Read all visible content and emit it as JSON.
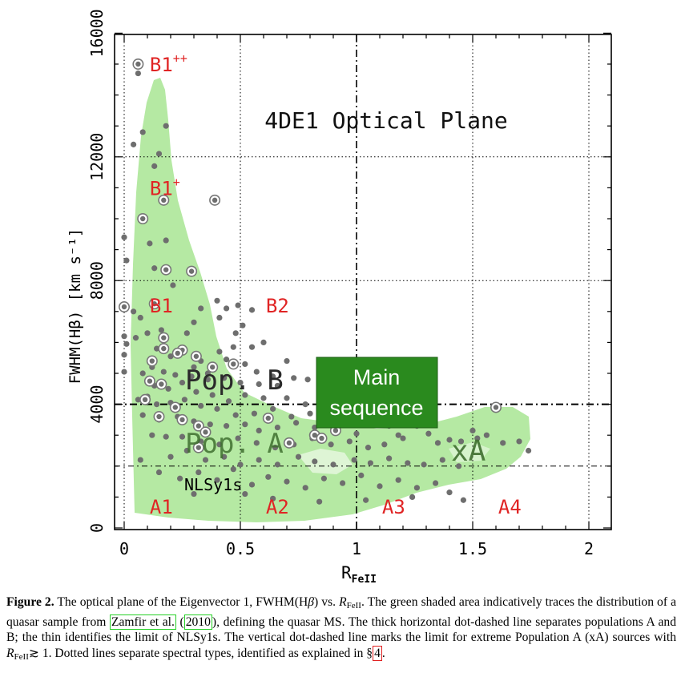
{
  "chart_data": {
    "type": "scatter",
    "title": "4DE1 Optical Plane",
    "xlabel": "R",
    "xlabel_sub": "FeII",
    "ylabel": "FWHM(Hβ) [km s⁻¹]",
    "xlim": [
      -0.05,
      2.1
    ],
    "ylim": [
      -200,
      16000
    ],
    "x_ticks": [
      "0",
      "0.5",
      "1",
      "1.5",
      "2"
    ],
    "x_tick_values": [
      0,
      0.5,
      1,
      1.5,
      2
    ],
    "y_ticks": [
      "0",
      "4000",
      "8000",
      "12000",
      "16000"
    ],
    "y_tick_values": [
      0,
      4000,
      8000,
      12000,
      16000
    ],
    "grid": "dotted spectral-type boundaries",
    "vertical_boundaries": [
      0.5,
      1.0,
      1.5
    ],
    "horizontal_boundaries": [
      4000,
      8000,
      12000
    ],
    "pop_boundary_fwhm": 4000,
    "nlsy1_limit_fwhm": 2000,
    "xa_limit_rfe": 1.0,
    "colors": {
      "ms_area": "#b5e9a3",
      "points": "#6e6e6e",
      "labels": "#e02424",
      "ms_box": "#2a8a1e"
    },
    "region_labels": [
      {
        "text": "B1",
        "sup": "++",
        "x": 0.11,
        "y": 15000
      },
      {
        "text": "B1",
        "sup": "+",
        "x": 0.11,
        "y": 11000
      },
      {
        "text": "B1",
        "x": 0.11,
        "y": 7200
      },
      {
        "text": "B2",
        "x": 0.61,
        "y": 7200
      },
      {
        "text": "A1",
        "x": 0.11,
        "y": 700
      },
      {
        "text": "A2",
        "x": 0.61,
        "y": 700
      },
      {
        "text": "A3",
        "x": 1.11,
        "y": 700
      },
      {
        "text": "A4",
        "x": 1.61,
        "y": 700
      }
    ],
    "annotations": {
      "pop_b": "Pop. B",
      "pop_a": "Pop. A",
      "nlsy1": "NLSy1s",
      "xa": "xA",
      "main_sequence": [
        "Main",
        "sequence"
      ]
    },
    "series_filled": [
      [
        0.0,
        9400
      ],
      [
        0.01,
        8650
      ],
      [
        0.0,
        6200
      ],
      [
        0.01,
        5950
      ],
      [
        0.0,
        5600
      ],
      [
        0.0,
        5050
      ],
      [
        0.04,
        12400
      ],
      [
        0.06,
        14700
      ],
      [
        0.08,
        12800
      ],
      [
        0.13,
        11700
      ],
      [
        0.15,
        12100
      ],
      [
        0.18,
        13000
      ],
      [
        0.11,
        9200
      ],
      [
        0.18,
        9300
      ],
      [
        0.13,
        8400
      ],
      [
        0.21,
        7850
      ],
      [
        0.04,
        7000
      ],
      [
        0.07,
        6800
      ],
      [
        0.1,
        6300
      ],
      [
        0.05,
        6150
      ],
      [
        0.16,
        6400
      ],
      [
        0.14,
        5800
      ],
      [
        0.2,
        5550
      ],
      [
        0.25,
        5700
      ],
      [
        0.27,
        6300
      ],
      [
        0.3,
        6650
      ],
      [
        0.33,
        7100
      ],
      [
        0.4,
        7350
      ],
      [
        0.44,
        7100
      ],
      [
        0.49,
        7200
      ],
      [
        0.55,
        7050
      ],
      [
        0.41,
        6800
      ],
      [
        0.48,
        6300
      ],
      [
        0.51,
        6550
      ],
      [
        0.6,
        6000
      ],
      [
        0.55,
        5850
      ],
      [
        0.47,
        5850
      ],
      [
        0.41,
        5700
      ],
      [
        0.33,
        5400
      ],
      [
        0.3,
        5200
      ],
      [
        0.36,
        5000
      ],
      [
        0.44,
        5450
      ],
      [
        0.52,
        5300
      ],
      [
        0.57,
        5050
      ],
      [
        0.64,
        4900
      ],
      [
        0.7,
        5400
      ],
      [
        0.73,
        4850
      ],
      [
        0.79,
        4800
      ],
      [
        0.66,
        4600
      ],
      [
        0.58,
        4650
      ],
      [
        0.5,
        4700
      ],
      [
        0.43,
        4850
      ],
      [
        0.36,
        4800
      ],
      [
        0.29,
        4900
      ],
      [
        0.22,
        4950
      ],
      [
        0.17,
        5050
      ],
      [
        0.12,
        5200
      ],
      [
        0.08,
        5000
      ],
      [
        0.13,
        4600
      ],
      [
        0.19,
        4500
      ],
      [
        0.25,
        4700
      ],
      [
        0.31,
        4400
      ],
      [
        0.38,
        4300
      ],
      [
        0.45,
        4100
      ],
      [
        0.52,
        4300
      ],
      [
        0.6,
        4200
      ],
      [
        0.7,
        4200
      ],
      [
        0.78,
        4000
      ],
      [
        0.85,
        4300
      ],
      [
        0.91,
        4100
      ],
      [
        0.88,
        3800
      ],
      [
        0.8,
        3700
      ],
      [
        0.72,
        3600
      ],
      [
        0.64,
        3850
      ],
      [
        0.56,
        3700
      ],
      [
        0.48,
        3650
      ],
      [
        0.4,
        3850
      ],
      [
        0.33,
        3950
      ],
      [
        0.26,
        4150
      ],
      [
        0.2,
        4050
      ],
      [
        0.14,
        4000
      ],
      [
        0.1,
        4250
      ],
      [
        0.06,
        4150
      ],
      [
        0.08,
        3650
      ],
      [
        0.15,
        3500
      ],
      [
        0.23,
        3600
      ],
      [
        0.3,
        3450
      ],
      [
        0.37,
        3350
      ],
      [
        0.44,
        3300
      ],
      [
        0.52,
        3350
      ],
      [
        0.58,
        3150
      ],
      [
        0.66,
        3250
      ],
      [
        0.74,
        3400
      ],
      [
        0.82,
        3250
      ],
      [
        0.93,
        3350
      ],
      [
        1.0,
        3050
      ],
      [
        1.08,
        3350
      ],
      [
        1.14,
        3300
      ],
      [
        1.18,
        3000
      ],
      [
        1.26,
        3300
      ],
      [
        1.31,
        3050
      ],
      [
        1.35,
        2750
      ],
      [
        1.4,
        2850
      ],
      [
        1.45,
        2800
      ],
      [
        1.52,
        2900
      ],
      [
        1.56,
        3000
      ],
      [
        1.63,
        2750
      ],
      [
        1.7,
        2800
      ],
      [
        1.74,
        2500
      ],
      [
        1.5,
        3150
      ],
      [
        1.2,
        2900
      ],
      [
        1.12,
        2700
      ],
      [
        1.05,
        2600
      ],
      [
        0.97,
        2800
      ],
      [
        0.89,
        2700
      ],
      [
        0.81,
        2900
      ],
      [
        0.73,
        2700
      ],
      [
        0.65,
        2600
      ],
      [
        0.57,
        2750
      ],
      [
        0.49,
        2900
      ],
      [
        0.41,
        2700
      ],
      [
        0.33,
        2800
      ],
      [
        0.25,
        2950
      ],
      [
        0.18,
        2950
      ],
      [
        0.12,
        3000
      ],
      [
        0.2,
        2300
      ],
      [
        0.27,
        2500
      ],
      [
        0.35,
        2200
      ],
      [
        0.43,
        2300
      ],
      [
        0.5,
        2050
      ],
      [
        0.58,
        2200
      ],
      [
        0.66,
        2050
      ],
      [
        0.75,
        2300
      ],
      [
        0.82,
        2150
      ],
      [
        0.9,
        2050
      ],
      [
        0.99,
        2200
      ],
      [
        1.06,
        2100
      ],
      [
        1.14,
        2250
      ],
      [
        1.22,
        2100
      ],
      [
        1.29,
        2050
      ],
      [
        1.37,
        2200
      ],
      [
        1.44,
        2000
      ],
      [
        0.07,
        2200
      ],
      [
        0.15,
        1800
      ],
      [
        0.24,
        1600
      ],
      [
        0.32,
        1800
      ],
      [
        0.4,
        1550
      ],
      [
        0.47,
        1900
      ],
      [
        0.55,
        1400
      ],
      [
        0.62,
        1650
      ],
      [
        0.7,
        1500
      ],
      [
        0.78,
        1300
      ],
      [
        0.86,
        1600
      ],
      [
        0.94,
        1450
      ],
      [
        1.02,
        1700
      ],
      [
        1.1,
        1350
      ],
      [
        1.18,
        1550
      ],
      [
        1.26,
        1300
      ],
      [
        1.34,
        1450
      ],
      [
        1.4,
        1150
      ],
      [
        0.52,
        1100
      ],
      [
        0.64,
        950
      ],
      [
        0.84,
        850
      ],
      [
        1.04,
        900
      ],
      [
        1.24,
        1000
      ],
      [
        1.46,
        900
      ],
      [
        0.3,
        1100
      ]
    ],
    "series_circled": [
      [
        0.06,
        15000
      ],
      [
        0.0,
        7150
      ],
      [
        0.08,
        10000
      ],
      [
        0.17,
        10600
      ],
      [
        0.39,
        10600
      ],
      [
        0.18,
        8350
      ],
      [
        0.29,
        8300
      ],
      [
        0.13,
        7250
      ],
      [
        0.17,
        6150
      ],
      [
        0.17,
        5800
      ],
      [
        0.25,
        5750
      ],
      [
        0.23,
        5650
      ],
      [
        0.31,
        5550
      ],
      [
        0.12,
        5400
      ],
      [
        0.47,
        5300
      ],
      [
        0.38,
        5200
      ],
      [
        0.11,
        4750
      ],
      [
        0.16,
        4650
      ],
      [
        0.09,
        4150
      ],
      [
        0.22,
        3900
      ],
      [
        0.15,
        3600
      ],
      [
        0.25,
        3500
      ],
      [
        0.32,
        3300
      ],
      [
        0.62,
        3550
      ],
      [
        0.91,
        3150
      ],
      [
        0.82,
        3000
      ],
      [
        0.71,
        2750
      ],
      [
        0.85,
        2900
      ],
      [
        0.32,
        2600
      ],
      [
        1.6,
        3900
      ],
      [
        0.35,
        3100
      ]
    ]
  },
  "caption": {
    "label": "Figure 2.",
    "s1": "The optical plane of the Eigenvector 1, FWHM(H",
    "beta": "β",
    "s2": ") vs. ",
    "r_sym": "R",
    "r_sub": "FeII",
    "s3": ". The green shaded area indicatively traces the distribution of a quasar sample from ",
    "cite_a": "Zamfir et al.",
    "s4": " (",
    "cite_year": "2010",
    "s5": "), defining the quasar MS. The thick horizontal dot-dashed line separates populations A and B; the thin identifies the limit of NLSy1s. The vertical dot-dashed line marks the limit for extreme Population A (xA) sources with ",
    "s6": "≳ 1. Dotted lines separate spectral types, identified as explained in §",
    "sec_ref": "4",
    "s7": "."
  }
}
